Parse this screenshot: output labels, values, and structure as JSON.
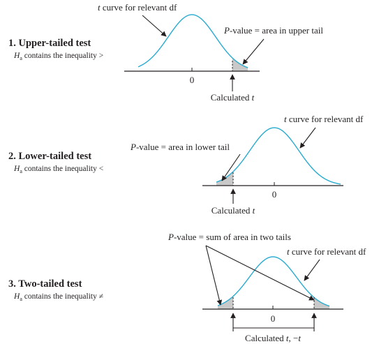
{
  "panels": [
    {
      "number": "1.",
      "title": "Upper-tailed test",
      "h_symbol": "H",
      "h_sub": "a",
      "h_text": " contains the inequality >",
      "curve_label_t": "t",
      "curve_label_rest": " curve for relevant df",
      "pvalue_P": "P",
      "pvalue_rest": "-value = area in upper tail",
      "zero": "0",
      "calc_text": "Calculated ",
      "calc_t": "t"
    },
    {
      "number": "2.",
      "title": "Lower-tailed test",
      "h_symbol": "H",
      "h_sub": "a",
      "h_text": " contains the inequality <",
      "curve_label_t": "t",
      "curve_label_rest": " curve for relevant df",
      "pvalue_P": "P",
      "pvalue_rest": "-value = area in lower tail",
      "zero": "0",
      "calc_text": "Calculated ",
      "calc_t": "t"
    },
    {
      "number": "3.",
      "title": "Two-tailed test",
      "h_symbol": "H",
      "h_sub": "a",
      "h_text": " contains the inequality ≠",
      "curve_label_t": "t",
      "curve_label_rest": " curve for relevant df",
      "pvalue_P": "P",
      "pvalue_rest": "-value = sum of area in two tails",
      "zero": "0",
      "calc_text": "Calculated ",
      "calc_t": "t",
      "calc_sep": ", −",
      "calc_t2": "t"
    }
  ],
  "colors": {
    "curve": "#29abcf",
    "tail_fill": "#c9c9c9",
    "text": "#231f20"
  }
}
